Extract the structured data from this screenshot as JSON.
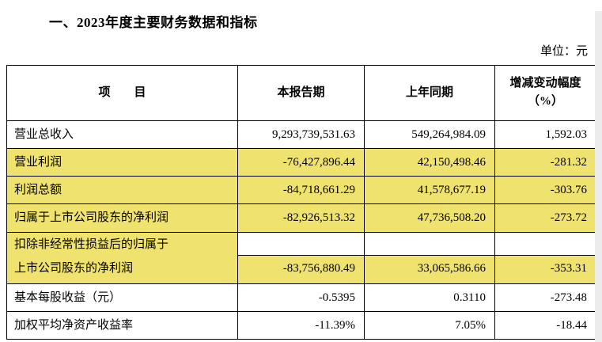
{
  "page": {
    "title": "一、2023年度主要财务数据和指标",
    "unit_label": "单位：元"
  },
  "colors": {
    "highlight": "#efe26e",
    "border": "#000000",
    "text": "#000000",
    "background": "#ffffff"
  },
  "table": {
    "headers": {
      "item": "项　　目",
      "current_period": "本报告期",
      "prior_period": "上年同期",
      "change_pct": "增减变动幅度（%）"
    },
    "rows": [
      {
        "label": "营业总收入",
        "current": "9,293,739,531.63",
        "prior": "549,264,984.09",
        "change": "1,592.03",
        "highlight": false
      },
      {
        "label": "营业利润",
        "current": "-76,427,896.44",
        "prior": "42,150,498.46",
        "change": "-281.32",
        "highlight": true
      },
      {
        "label": "利润总额",
        "current": "-84,718,661.29",
        "prior": "41,578,677.19",
        "change": "-303.76",
        "highlight": true
      },
      {
        "label": "归属于上市公司股东的净利润",
        "current": "-82,926,513.32",
        "prior": "47,736,508.20",
        "change": "-273.72",
        "highlight": true
      },
      {
        "label": "扣除非经常性损益后的归属于上市公司股东的净利润",
        "label_line1": "扣除非经常性损益后的归属于",
        "label_line2": "上市公司股东的净利润",
        "current": "-83,756,880.49",
        "prior": "33,065,586.66",
        "change": "-353.31",
        "highlight": true
      },
      {
        "label": "基本每股收益（元）",
        "current": "-0.5395",
        "prior": "0.3110",
        "change": "-273.48",
        "highlight": false
      },
      {
        "label": "加权平均净资产收益率",
        "current": "-11.39%",
        "prior": "7.05%",
        "change": "-18.44",
        "highlight": false
      }
    ]
  }
}
